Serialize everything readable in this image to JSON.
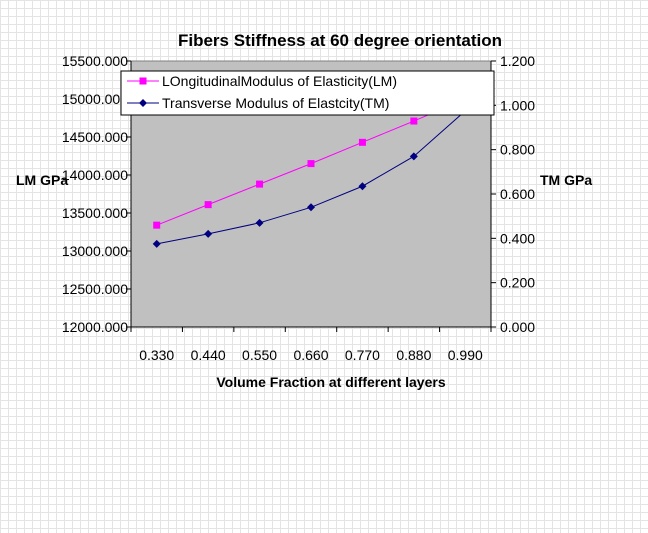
{
  "chart_data": {
    "type": "line",
    "title": "Fibers  Stiffness at 60 degree orientation",
    "xlabel": "Volume Fraction at different layers",
    "ylabel_left": "LM GPa",
    "ylabel_right": "TM GPa",
    "categories": [
      "0.330",
      "0.440",
      "0.550",
      "0.660",
      "0.770",
      "0.880",
      "0.990"
    ],
    "y_left": {
      "lim": [
        12000,
        15500
      ],
      "ticks": [
        "12000.000",
        "12500.000",
        "13000.000",
        "13500.000",
        "14000.000",
        "14500.000",
        "15000.000",
        "15500.000"
      ]
    },
    "y_right": {
      "lim": [
        0,
        1.2
      ],
      "ticks": [
        "0.000",
        "0.200",
        "0.400",
        "0.600",
        "0.800",
        "1.000",
        "1.200"
      ]
    },
    "series": [
      {
        "name": "LOngitudinalModulus of Elasticity(LM)",
        "axis": "left",
        "color": "#ff00ff",
        "marker": "square",
        "values": [
          13340,
          13610,
          13880,
          14150,
          14430,
          14710,
          15000
        ]
      },
      {
        "name": "Transverse Modulus of Elastcity(TM)",
        "axis": "right",
        "color": "#000080",
        "marker": "diamond",
        "values": [
          0.375,
          0.42,
          0.47,
          0.54,
          0.635,
          0.77,
          0.975
        ]
      }
    ],
    "legend_position": "top-left inside plot",
    "plot_background": "#c0c0c0",
    "grid": false
  }
}
